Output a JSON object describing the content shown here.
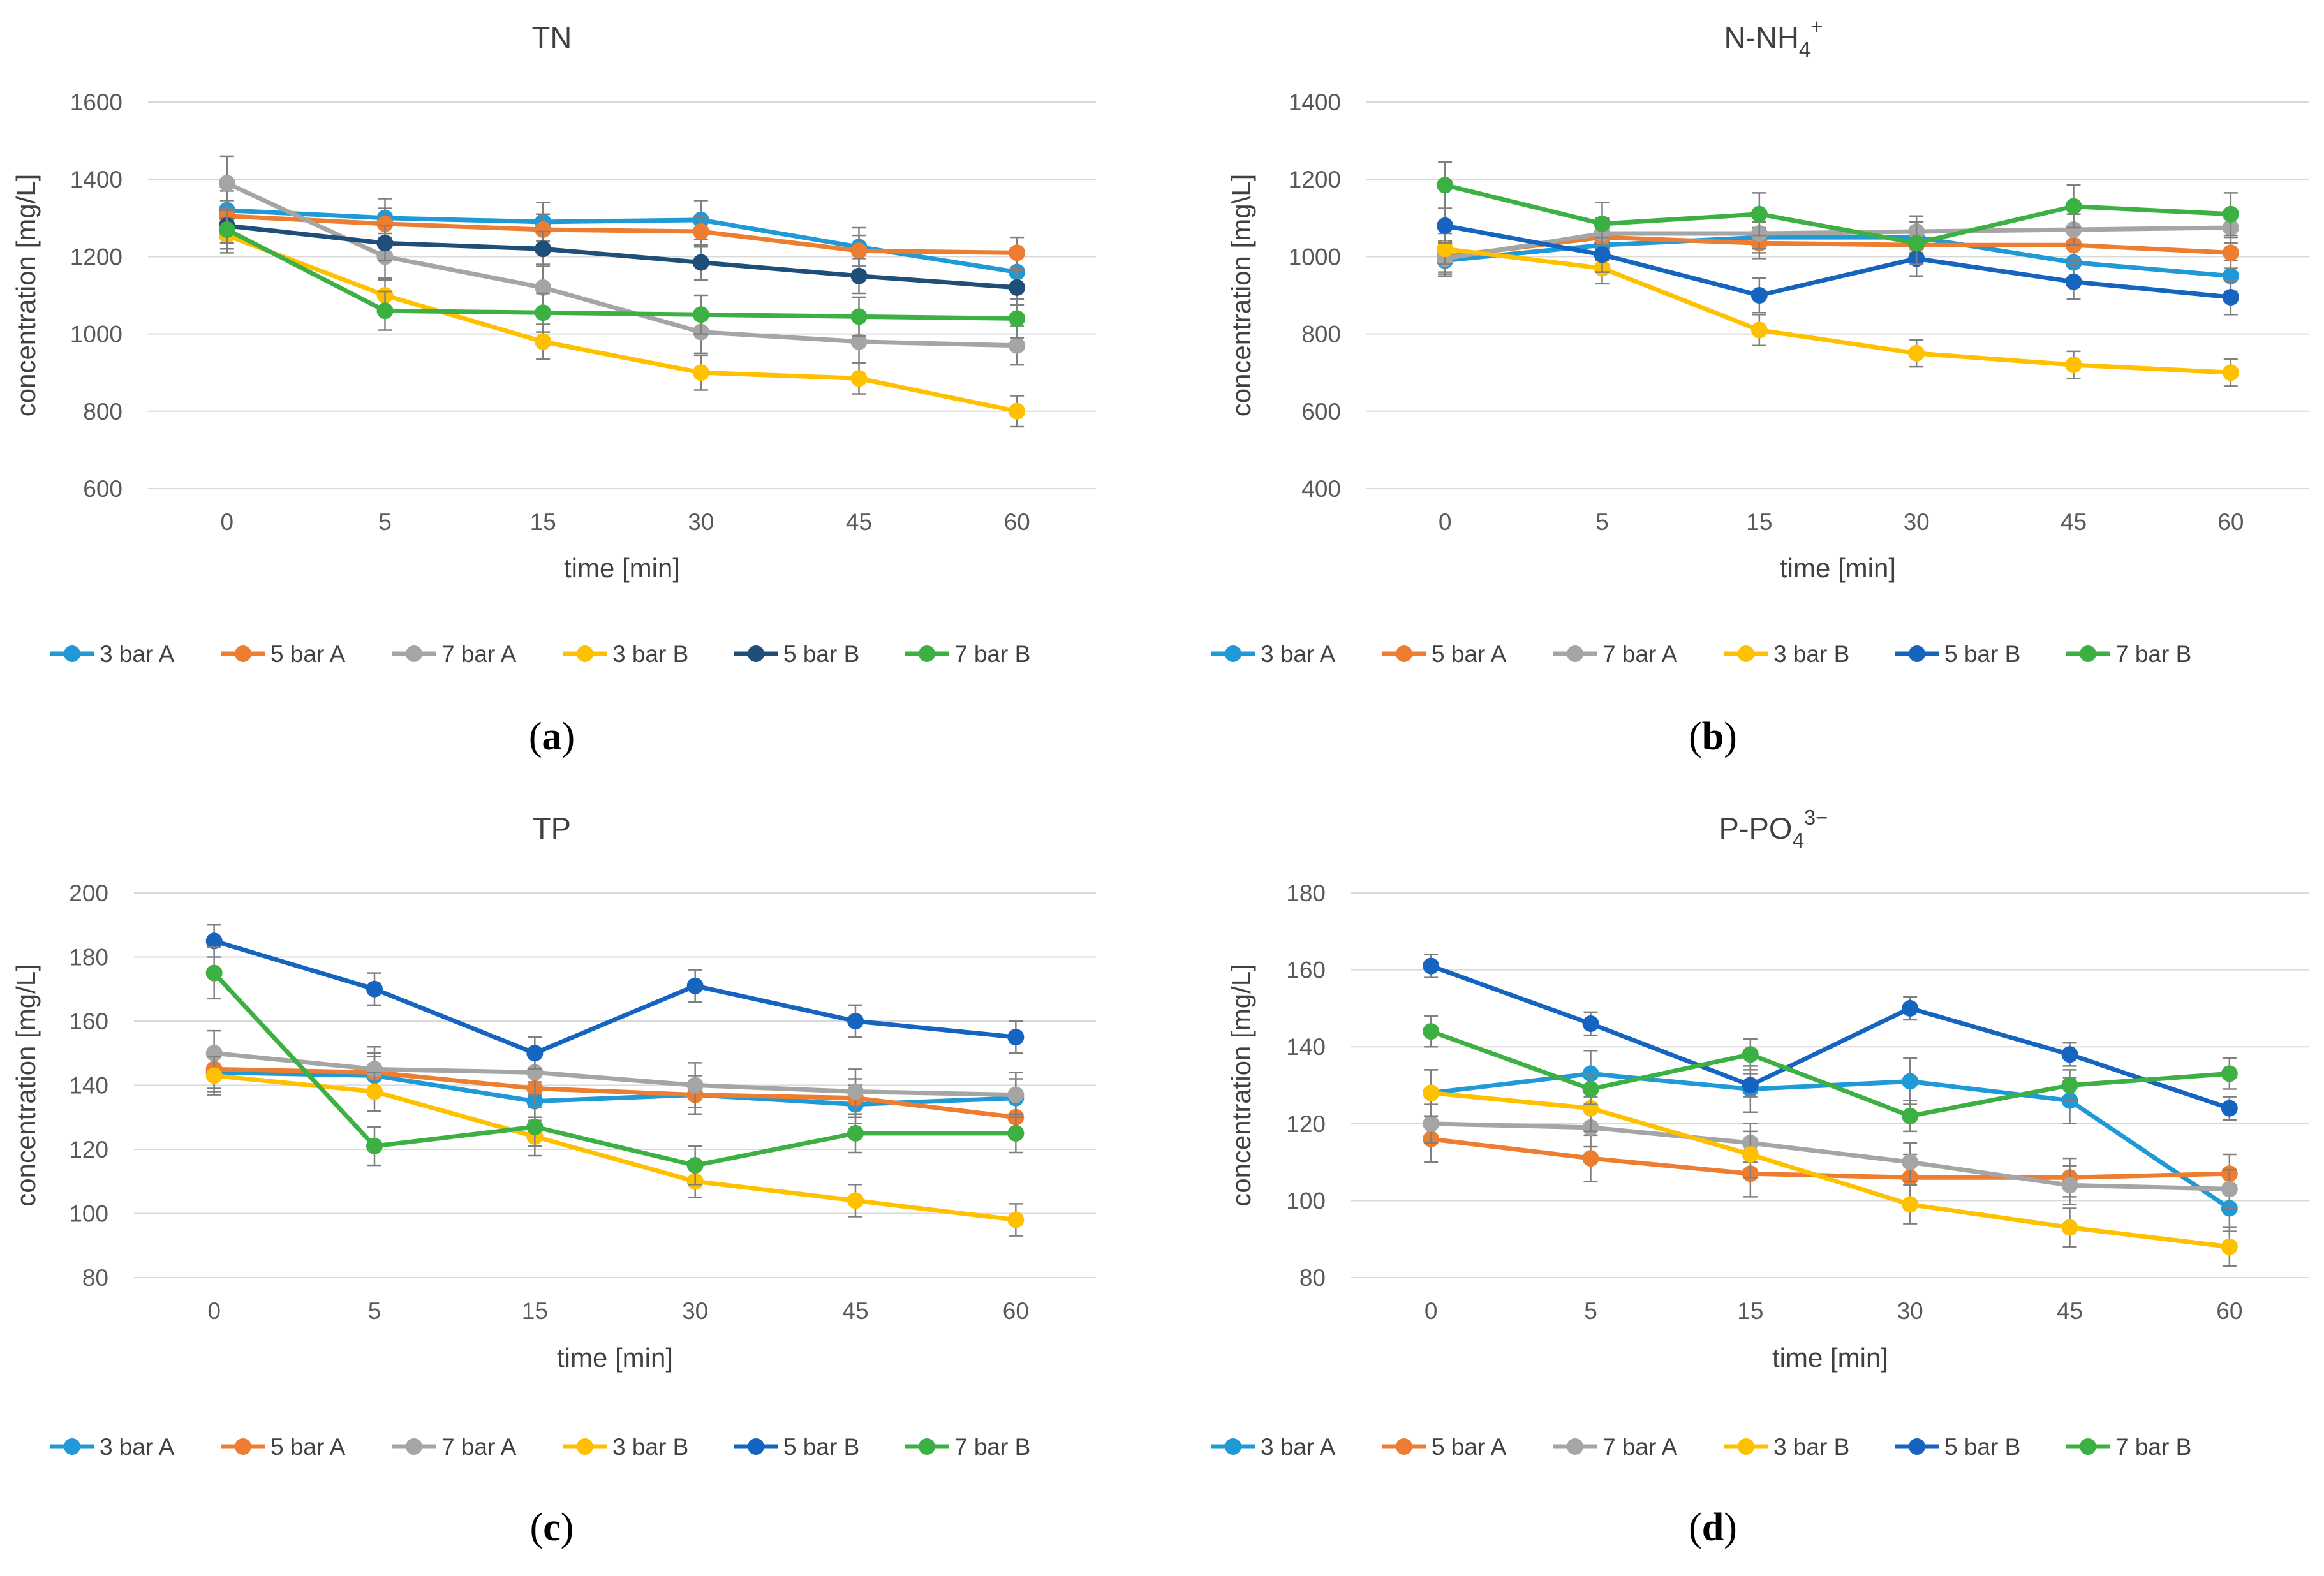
{
  "chart_data": [
    {
      "type": "line",
      "panel_label": "a",
      "title": "TN",
      "title_sub": "",
      "title_sup": "",
      "xlabel": "time [min]",
      "ylabel": "concentration [mg/L]",
      "categories": [
        "0",
        "5",
        "15",
        "30",
        "45",
        "60"
      ],
      "ylim": [
        600,
        1600
      ],
      "yticks": [
        "600",
        "800",
        "1000",
        "1200",
        "1400",
        "1600"
      ],
      "grid": true,
      "legend_position": "bottom",
      "error_bars": true,
      "series": [
        {
          "name": "3 bar A",
          "color": "#1f9ad6",
          "values": [
            1320,
            1300,
            1290,
            1295,
            1225,
            1160
          ],
          "errors": [
            50,
            50,
            50,
            50,
            50,
            50
          ]
        },
        {
          "name": "5 bar A",
          "color": "#ed7d31",
          "values": [
            1305,
            1285,
            1270,
            1265,
            1215,
            1210
          ],
          "errors": [
            40,
            40,
            40,
            40,
            40,
            40
          ]
        },
        {
          "name": "7 bar A",
          "color": "#a5a5a5",
          "values": [
            1390,
            1200,
            1120,
            1005,
            980,
            970
          ],
          "errors": [
            70,
            60,
            60,
            55,
            55,
            50
          ]
        },
        {
          "name": "3 bar B",
          "color": "#ffc000",
          "values": [
            1255,
            1100,
            980,
            900,
            885,
            800
          ],
          "errors": [
            45,
            45,
            45,
            45,
            40,
            40
          ]
        },
        {
          "name": "5 bar B",
          "color": "#1f4e79",
          "values": [
            1280,
            1235,
            1220,
            1185,
            1150,
            1120
          ],
          "errors": [
            45,
            45,
            45,
            45,
            45,
            45
          ]
        },
        {
          "name": "7 bar B",
          "color": "#3cb043",
          "values": [
            1270,
            1060,
            1055,
            1050,
            1045,
            1040
          ],
          "errors": [
            50,
            50,
            50,
            50,
            50,
            50
          ]
        }
      ]
    },
    {
      "type": "line",
      "panel_label": "b",
      "title": "N-NH",
      "title_sub": "4",
      "title_sup": "+",
      "xlabel": "time [min]",
      "ylabel": "concentration [mg\\L]",
      "categories": [
        "0",
        "5",
        "15",
        "30",
        "45",
        "60"
      ],
      "ylim": [
        400,
        1400
      ],
      "yticks": [
        "400",
        "600",
        "800",
        "1000",
        "1200",
        "1400"
      ],
      "grid": true,
      "legend_position": "bottom",
      "error_bars": true,
      "series": [
        {
          "name": "3 bar A",
          "color": "#1f9ad6",
          "values": [
            990,
            1030,
            1050,
            1050,
            985,
            950
          ],
          "errors": [
            40,
            40,
            40,
            40,
            40,
            40
          ]
        },
        {
          "name": "5 bar A",
          "color": "#ed7d31",
          "values": [
            1000,
            1050,
            1035,
            1030,
            1030,
            1010
          ],
          "errors": [
            40,
            40,
            40,
            40,
            40,
            40
          ]
        },
        {
          "name": "7 bar A",
          "color": "#a5a5a5",
          "values": [
            995,
            1060,
            1060,
            1065,
            1070,
            1075
          ],
          "errors": [
            40,
            40,
            40,
            40,
            40,
            40
          ]
        },
        {
          "name": "3 bar B",
          "color": "#ffc000",
          "values": [
            1020,
            970,
            810,
            750,
            720,
            700
          ],
          "errors": [
            40,
            40,
            40,
            35,
            35,
            35
          ]
        },
        {
          "name": "5 bar B",
          "color": "#1565c0",
          "values": [
            1080,
            1005,
            900,
            995,
            935,
            895
          ],
          "errors": [
            45,
            45,
            45,
            45,
            45,
            45
          ]
        },
        {
          "name": "7 bar B",
          "color": "#3cb043",
          "values": [
            1185,
            1085,
            1110,
            1035,
            1130,
            1110
          ],
          "errors": [
            60,
            55,
            55,
            55,
            55,
            55
          ]
        }
      ]
    },
    {
      "type": "line",
      "panel_label": "c",
      "title": "TP",
      "title_sub": "",
      "title_sup": "",
      "xlabel": "time [min]",
      "ylabel": "concentration [mg/L]",
      "categories": [
        "0",
        "5",
        "15",
        "30",
        "45",
        "60"
      ],
      "ylim": [
        80,
        200
      ],
      "yticks": [
        "80",
        "100",
        "120",
        "140",
        "160",
        "180",
        "200"
      ],
      "grid": true,
      "legend_position": "bottom",
      "error_bars": true,
      "series": [
        {
          "name": "3 bar A",
          "color": "#1f9ad6",
          "values": [
            144,
            143,
            135,
            137,
            134,
            136
          ],
          "errors": [
            6,
            6,
            6,
            6,
            6,
            6
          ]
        },
        {
          "name": "5 bar A",
          "color": "#ed7d31",
          "values": [
            145,
            144,
            139,
            137,
            136,
            130
          ],
          "errors": [
            6,
            6,
            6,
            6,
            6,
            6
          ]
        },
        {
          "name": "7 bar A",
          "color": "#a5a5a5",
          "values": [
            150,
            145,
            144,
            140,
            138,
            137
          ],
          "errors": [
            7,
            7,
            7,
            7,
            7,
            7
          ]
        },
        {
          "name": "3 bar B",
          "color": "#ffc000",
          "values": [
            143,
            138,
            124,
            110,
            104,
            98
          ],
          "errors": [
            6,
            6,
            6,
            5,
            5,
            5
          ]
        },
        {
          "name": "5 bar B",
          "color": "#1565c0",
          "values": [
            185,
            170,
            150,
            171,
            160,
            155
          ],
          "errors": [
            5,
            5,
            5,
            5,
            5,
            5
          ]
        },
        {
          "name": "7 bar B",
          "color": "#3cb043",
          "values": [
            175,
            121,
            127,
            115,
            125,
            125
          ],
          "errors": [
            8,
            6,
            6,
            6,
            6,
            6
          ]
        }
      ]
    },
    {
      "type": "line",
      "panel_label": "d",
      "title": "P-PO",
      "title_sub": "4",
      "title_sup": "3−",
      "xlabel": "time [min]",
      "ylabel": "concentration [mg/L]",
      "categories": [
        "0",
        "5",
        "15",
        "30",
        "45",
        "60"
      ],
      "ylim": [
        80,
        180
      ],
      "yticks": [
        "80",
        "100",
        "120",
        "140",
        "160",
        "180"
      ],
      "grid": true,
      "legend_position": "bottom",
      "error_bars": true,
      "series": [
        {
          "name": "3 bar A",
          "color": "#1f9ad6",
          "values": [
            128,
            133,
            129,
            131,
            126,
            98
          ],
          "errors": [
            6,
            6,
            6,
            6,
            6,
            6
          ]
        },
        {
          "name": "5 bar A",
          "color": "#ed7d31",
          "values": [
            116,
            111,
            107,
            106,
            106,
            107
          ],
          "errors": [
            6,
            6,
            6,
            6,
            5,
            5
          ]
        },
        {
          "name": "7 bar A",
          "color": "#a5a5a5",
          "values": [
            120,
            119,
            115,
            110,
            104,
            103
          ],
          "errors": [
            5,
            5,
            5,
            5,
            5,
            5
          ]
        },
        {
          "name": "3 bar B",
          "color": "#ffc000",
          "values": [
            128,
            124,
            112,
            99,
            93,
            88
          ],
          "errors": [
            6,
            6,
            6,
            5,
            5,
            5
          ]
        },
        {
          "name": "5 bar B",
          "color": "#1565c0",
          "values": [
            161,
            146,
            130,
            150,
            138,
            124
          ],
          "errors": [
            3,
            3,
            3,
            3,
            3,
            3
          ]
        },
        {
          "name": "7 bar B",
          "color": "#3cb043",
          "values": [
            144,
            129,
            138,
            122,
            130,
            133
          ],
          "errors": [
            4,
            4,
            4,
            4,
            4,
            4
          ]
        }
      ]
    }
  ]
}
